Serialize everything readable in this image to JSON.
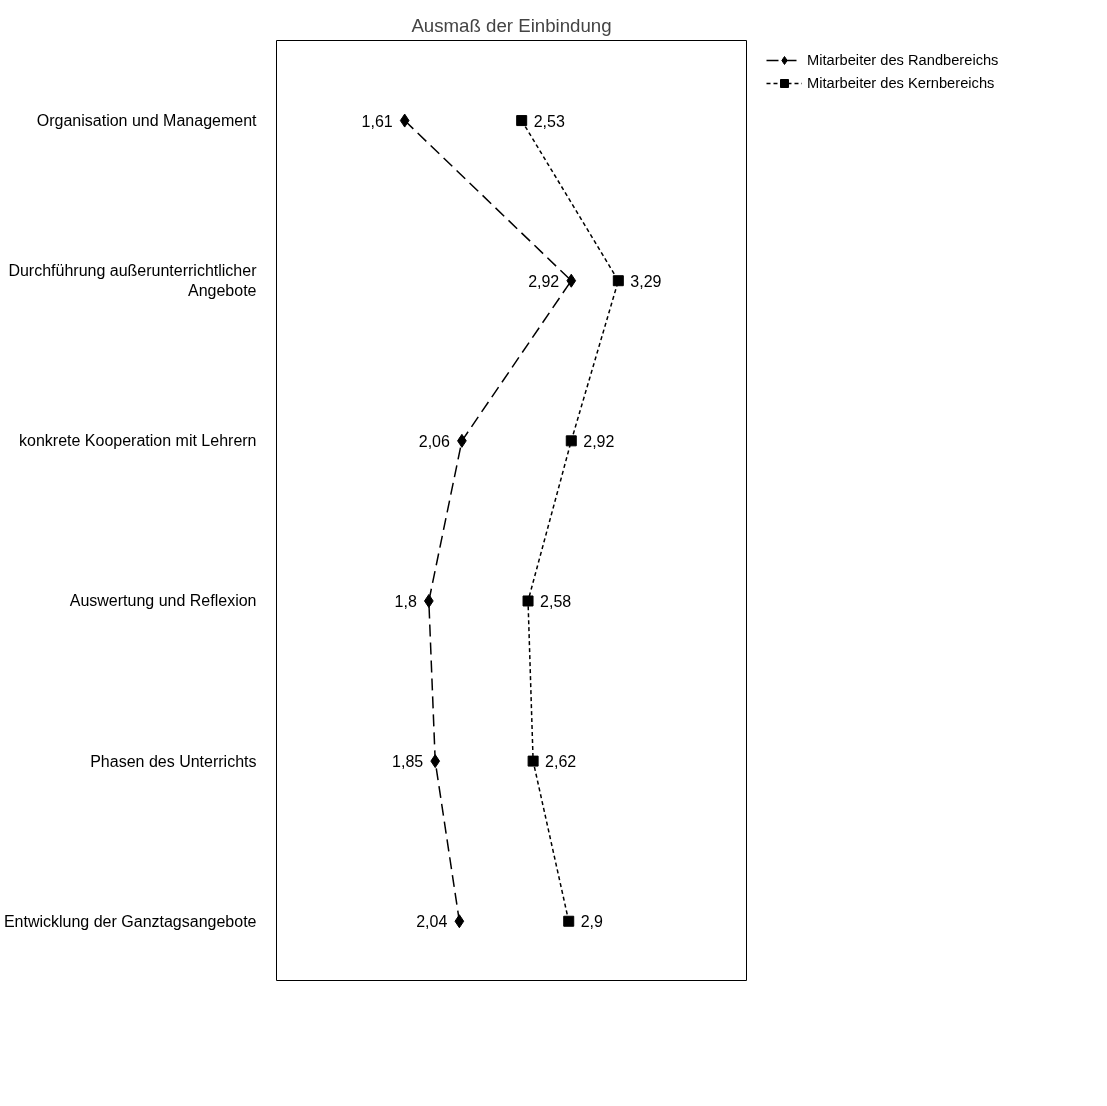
{
  "chart_data": {
    "type": "line",
    "orientation": "horizontal",
    "title": "Ausmaß der Einbindung",
    "categories": [
      "Organisation und Management",
      "Durchführung außerunterrichtlicher\nAngebote",
      "konkrete Kooperation mit Lehrern",
      "Auswertung und Reflexion",
      "Phasen des Unterrichts",
      "Entwicklung der Ganztagsangebote"
    ],
    "series": [
      {
        "name": "Mitarbeiter des Randbereichs",
        "color": "#000000",
        "marker": "diamond",
        "line_style": "dashed",
        "values": [
          1.61,
          2.92,
          2.06,
          1.8,
          1.85,
          2.04
        ],
        "value_labels": [
          "1,61",
          "2,92",
          "2,06",
          "1,8",
          "1,85",
          "2,04"
        ]
      },
      {
        "name": "Mitarbeiter des Kernbereichs",
        "color": "#000000",
        "marker": "square",
        "line_style": "dotted",
        "values": [
          2.53,
          3.29,
          2.92,
          2.58,
          2.62,
          2.9
        ],
        "value_labels": [
          "2,53",
          "3,29",
          "2,92",
          "2,58",
          "2,62",
          "2,9"
        ]
      }
    ],
    "tick_labels": "y",
    "grid": false,
    "legend": "right"
  }
}
